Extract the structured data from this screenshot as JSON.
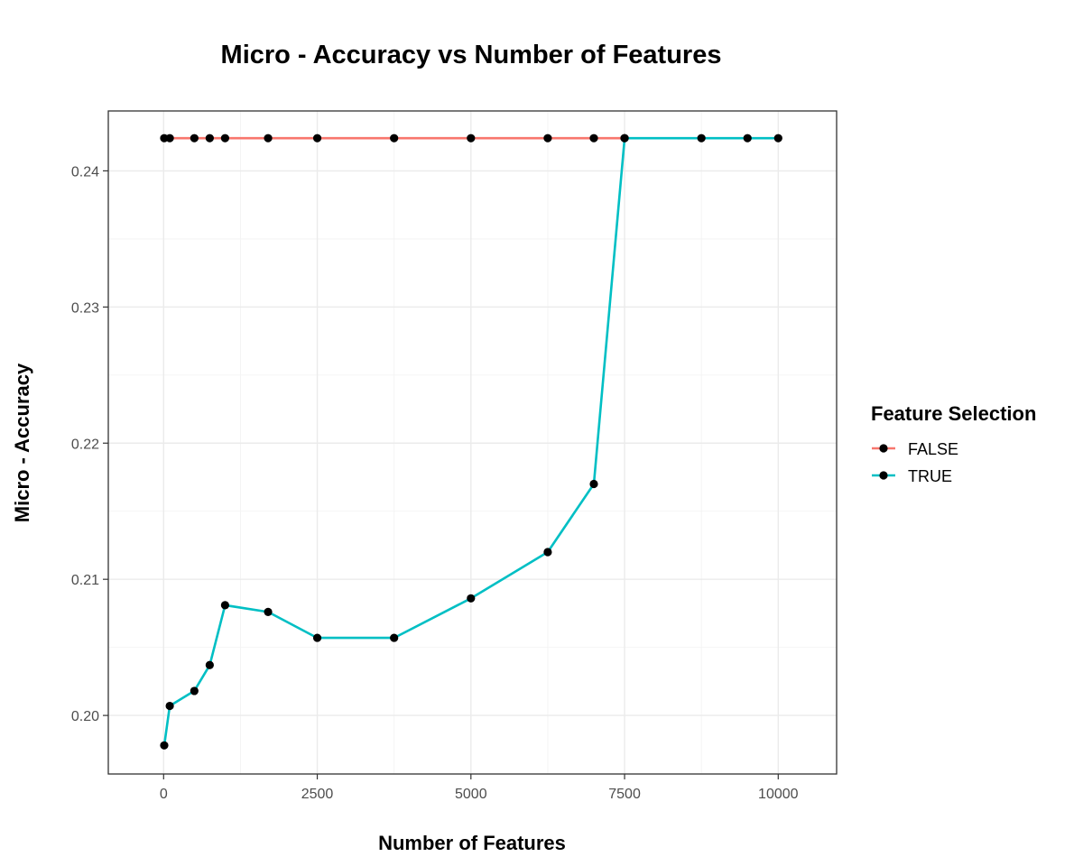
{
  "chart_data": {
    "type": "line",
    "title": "Micro - Accuracy vs Number of Features",
    "xlabel": "Number of Features",
    "ylabel": "Micro - Accuracy",
    "xlim": [
      -900,
      10950
    ],
    "ylim": [
      0.1957,
      0.2444
    ],
    "x_ticks": [
      0,
      2500,
      5000,
      7500,
      10000
    ],
    "x_tick_labels": [
      "0",
      "2500",
      "5000",
      "7500",
      "10000"
    ],
    "y_ticks": [
      0.2,
      0.21,
      0.22,
      0.23,
      0.24
    ],
    "y_tick_labels": [
      "0.20",
      "0.21",
      "0.22",
      "0.23",
      "0.24"
    ],
    "grid": true,
    "legend": {
      "title": "Feature Selection",
      "placement": "right"
    },
    "series": [
      {
        "name": "FALSE",
        "color": "#F8766D",
        "x": [
          10,
          100,
          500,
          750,
          1000,
          1700,
          2500,
          3750,
          5000,
          6250,
          7000,
          7500
        ],
        "y": [
          0.2424,
          0.2424,
          0.2424,
          0.2424,
          0.2424,
          0.2424,
          0.2424,
          0.2424,
          0.2424,
          0.2424,
          0.2424,
          0.2424
        ]
      },
      {
        "name": "TRUE",
        "color": "#00BFC4",
        "x": [
          10,
          100,
          500,
          750,
          1000,
          1700,
          2500,
          3750,
          5000,
          6250,
          7000,
          7500,
          8750,
          9500,
          10000
        ],
        "y": [
          0.1978,
          0.2007,
          0.2018,
          0.2037,
          0.2081,
          0.2076,
          0.2057,
          0.2057,
          0.2086,
          0.212,
          0.217,
          0.2424,
          0.2424,
          0.2424,
          0.2424
        ]
      }
    ],
    "point_color": "#000000"
  }
}
